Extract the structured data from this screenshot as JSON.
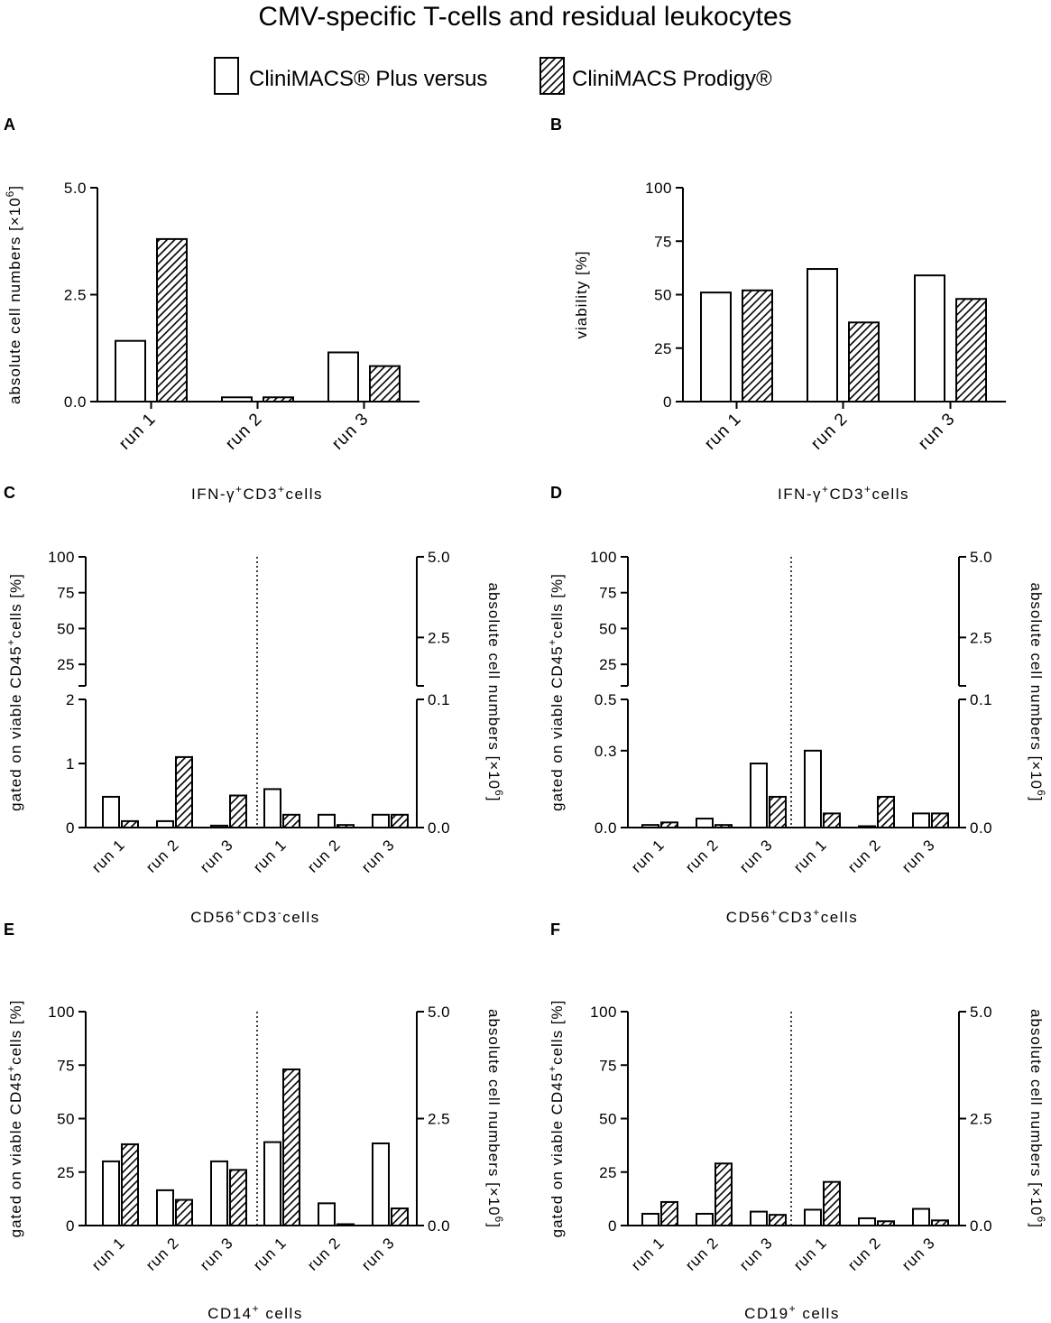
{
  "figure": {
    "title": "CMV-specific T-cells and residual leukocytes",
    "legend": [
      {
        "label": "CliniMACS® Plus versus",
        "pattern": "open"
      },
      {
        "label": "CliniMACS Prodigy®",
        "pattern": "hatched"
      }
    ]
  },
  "colors": {
    "stroke": "#000000",
    "background": "#ffffff"
  },
  "chart_data": [
    {
      "panel": "A",
      "type": "bar",
      "title": "IFN-γ⁺CD3⁺cells",
      "categories": [
        "run 1",
        "run 2",
        "run 3"
      ],
      "series": [
        {
          "name": "CliniMACS® Plus",
          "values": [
            1.42,
            0.1,
            1.15
          ]
        },
        {
          "name": "CliniMACS Prodigy®",
          "values": [
            3.8,
            0.1,
            0.83
          ]
        }
      ],
      "ylabel": "absolute cell numbers [×10⁶]",
      "ylim": [
        0,
        5
      ],
      "yticks": [
        "0.0",
        "2.5",
        "5.0"
      ]
    },
    {
      "panel": "B",
      "type": "bar",
      "title": "IFN-γ⁺CD3⁺cells",
      "categories": [
        "run 1",
        "run 2",
        "run 3"
      ],
      "series": [
        {
          "name": "CliniMACS® Plus",
          "values": [
            51,
            62,
            59
          ]
        },
        {
          "name": "CliniMACS Prodigy®",
          "values": [
            52,
            37,
            48
          ]
        }
      ],
      "ylabel": "viability [%]",
      "ylim": [
        0,
        100
      ],
      "yticks": [
        "0",
        "25",
        "50",
        "75",
        "100"
      ]
    },
    {
      "panel": "C",
      "type": "bar",
      "title": "CD56⁺CD3⁻cells",
      "left_categories": [
        "run 1",
        "run 2",
        "run 3"
      ],
      "right_categories": [
        "run 1",
        "run 2",
        "run 3"
      ],
      "left_series": [
        {
          "name": "CliniMACS® Plus",
          "values": [
            0.48,
            0.1,
            0.03
          ]
        },
        {
          "name": "CliniMACS Prodigy®",
          "values": [
            0.1,
            1.1,
            0.5
          ]
        }
      ],
      "right_series": [
        {
          "name": "CliniMACS® Plus",
          "values": [
            0.03,
            0.01,
            0.01
          ]
        },
        {
          "name": "CliniMACS Prodigy®",
          "values": [
            0.01,
            0.002,
            0.01
          ]
        }
      ],
      "left_ylabel": "gated on viable CD45⁺cells [%]",
      "right_ylabel": "absolute cell numbers [×10⁶]",
      "left_ylim_lower": [
        0,
        2
      ],
      "left_ylim_upper": [
        10,
        100
      ],
      "right_ylim_lower": [
        0,
        0.1
      ],
      "right_ylim_upper": [
        1,
        5
      ],
      "left_yticks_lower": [
        "0",
        "1",
        "2"
      ],
      "left_yticks_upper": [
        "25",
        "50",
        "75",
        "100"
      ],
      "right_yticks_lower": [
        "0.0",
        "0.1"
      ],
      "right_yticks_upper": [
        "2.5",
        "5.0"
      ],
      "axis_break": true
    },
    {
      "panel": "D",
      "type": "bar",
      "title": "CD56⁺CD3⁺cells",
      "left_categories": [
        "run 1",
        "run 2",
        "run 3"
      ],
      "right_categories": [
        "run 1",
        "run 2",
        "run 3"
      ],
      "left_series": [
        {
          "name": "CliniMACS® Plus",
          "values": [
            0.01,
            0.035,
            0.25
          ]
        },
        {
          "name": "CliniMACS Prodigy®",
          "values": [
            0.02,
            0.01,
            0.12
          ]
        }
      ],
      "right_series": [
        {
          "name": "CliniMACS® Plus",
          "values": [
            0.06,
            0.001,
            0.011
          ]
        },
        {
          "name": "CliniMACS Prodigy®",
          "values": [
            0.011,
            0.024,
            0.011
          ]
        }
      ],
      "left_ylabel": "gated on viable CD45⁺cells [%]",
      "right_ylabel": "absolute cell numbers [×10⁶]",
      "left_ylim_lower": [
        0,
        0.5
      ],
      "left_ylim_upper": [
        10,
        100
      ],
      "right_ylim_lower": [
        0,
        0.1
      ],
      "right_ylim_upper": [
        1,
        5
      ],
      "left_yticks_lower": [
        "0.0",
        "0.3",
        "0.5"
      ],
      "left_yticks_upper": [
        "25",
        "50",
        "75",
        "100"
      ],
      "right_yticks_lower": [
        "0.0",
        "0.1"
      ],
      "right_yticks_upper": [
        "2.5",
        "5.0"
      ],
      "axis_break": true
    },
    {
      "panel": "E",
      "type": "bar",
      "title": "CD14⁺ cells",
      "left_categories": [
        "run 1",
        "run 2",
        "run 3"
      ],
      "right_categories": [
        "run 1",
        "run 2",
        "run 3"
      ],
      "left_series": [
        {
          "name": "CliniMACS® Plus",
          "values": [
            30,
            16.5,
            30
          ]
        },
        {
          "name": "CliniMACS Prodigy®",
          "values": [
            38,
            12,
            26
          ]
        }
      ],
      "right_series": [
        {
          "name": "CliniMACS® Plus",
          "values": [
            1.95,
            0.52,
            1.92
          ]
        },
        {
          "name": "CliniMACS Prodigy®",
          "values": [
            3.65,
            0.03,
            0.4
          ]
        }
      ],
      "left_ylabel": "gated on viable CD45⁺cells [%]",
      "right_ylabel": "absolute cell numbers [×10⁶]",
      "left_ylim": [
        0,
        100
      ],
      "right_ylim": [
        0,
        5
      ],
      "left_yticks": [
        "0",
        "25",
        "50",
        "75",
        "100"
      ],
      "right_yticks": [
        "0.0",
        "2.5",
        "5.0"
      ],
      "axis_break": false
    },
    {
      "panel": "F",
      "type": "bar",
      "title": "CD19⁺ cells",
      "left_categories": [
        "run 1",
        "run 2",
        "run 3"
      ],
      "right_categories": [
        "run 1",
        "run 2",
        "run 3"
      ],
      "left_series": [
        {
          "name": "CliniMACS® Plus",
          "values": [
            5.5,
            5.5,
            6.5
          ]
        },
        {
          "name": "CliniMACS Prodigy®",
          "values": [
            11,
            29,
            5
          ]
        }
      ],
      "right_series": [
        {
          "name": "CliniMACS® Plus",
          "values": [
            0.37,
            0.17,
            0.39
          ]
        },
        {
          "name": "CliniMACS Prodigy®",
          "values": [
            1.02,
            0.1,
            0.12
          ]
        }
      ],
      "left_ylabel": "gated on viable CD45⁺cells [%]",
      "right_ylabel": "absolute cell numbers [×10⁶]",
      "left_ylim": [
        0,
        100
      ],
      "right_ylim": [
        0,
        5
      ],
      "left_yticks": [
        "0",
        "25",
        "50",
        "75",
        "100"
      ],
      "right_yticks": [
        "0.0",
        "2.5",
        "5.0"
      ],
      "axis_break": false
    }
  ]
}
